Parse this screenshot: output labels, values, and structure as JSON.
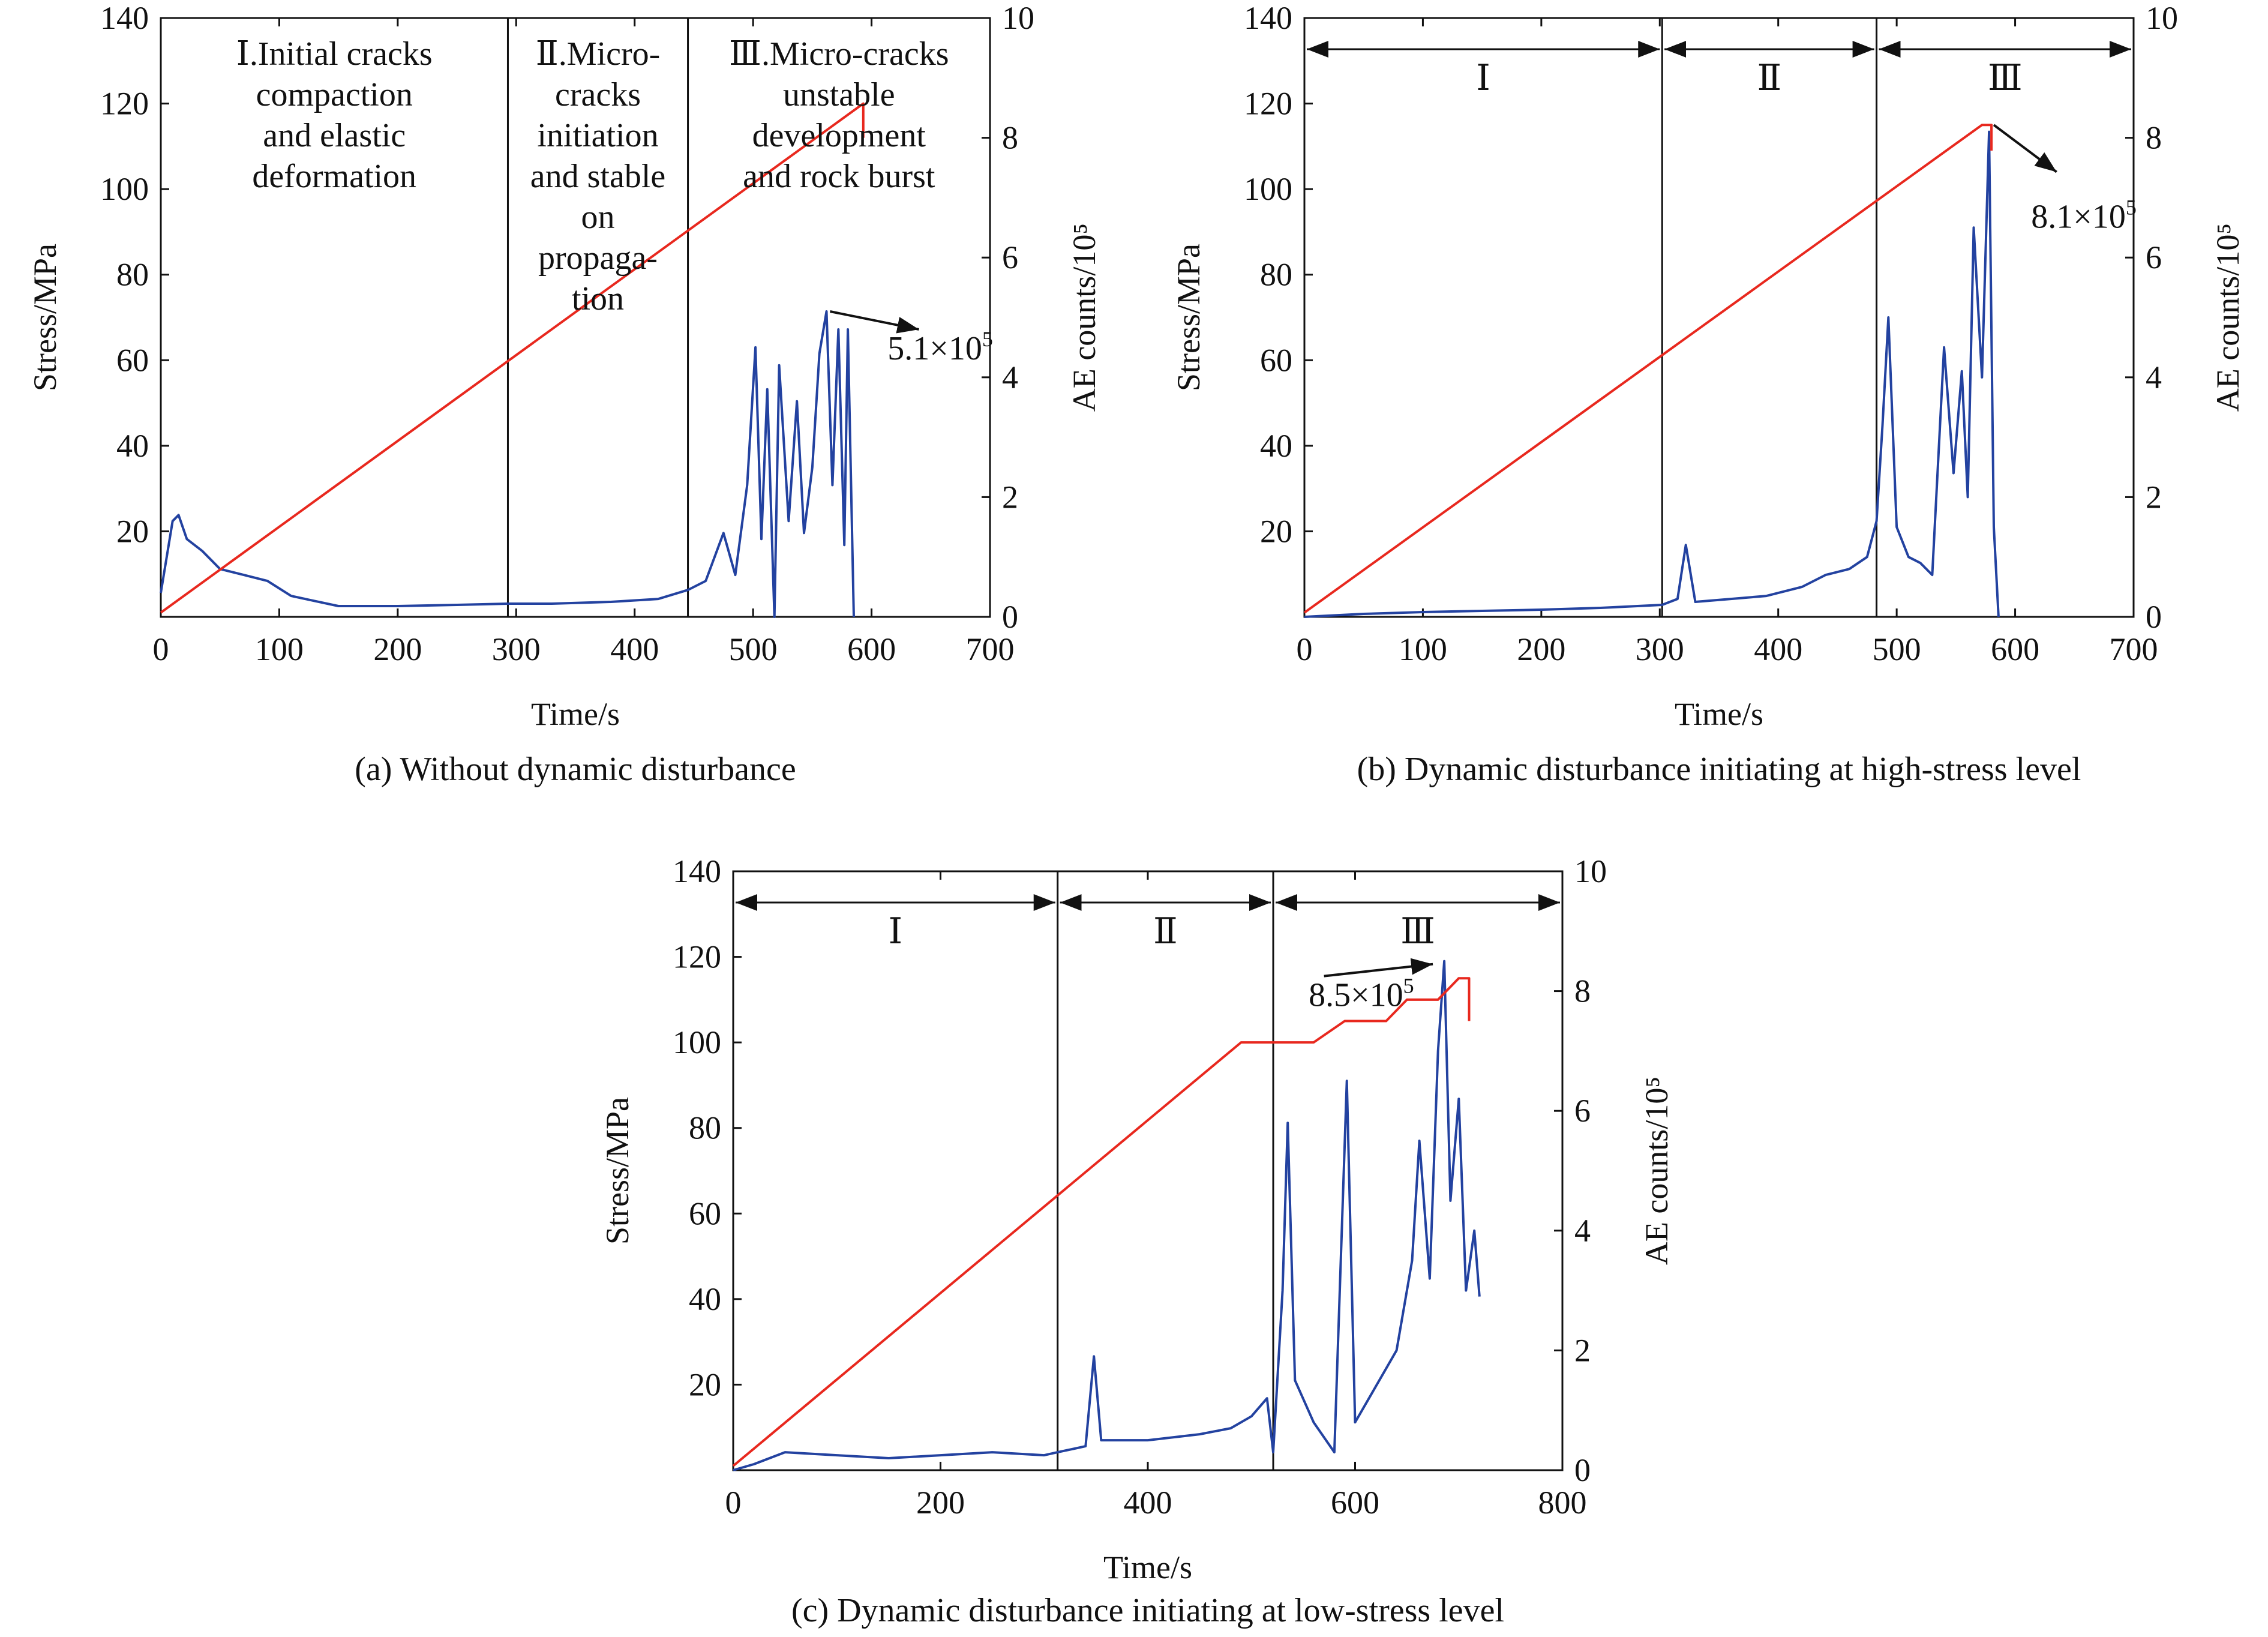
{
  "colors": {
    "stress": "#e8281e",
    "ae": "#2342a0",
    "axis": "#111111",
    "arrow": "#111111"
  },
  "charts": [
    {
      "id": "a",
      "caption": "(a) Without dynamic disturbance",
      "xlabel": "Time/s",
      "ylabel": "Stress/MPa",
      "y2label": "AE counts/10⁵",
      "xticks": [
        "0",
        "100",
        "200",
        "300",
        "400",
        "500",
        "600",
        "700"
      ],
      "yticks": [
        "20",
        "40",
        "60",
        "80",
        "100",
        "120",
        "140"
      ],
      "y2ticks": [
        "0",
        "2",
        "4",
        "6",
        "8",
        "10"
      ],
      "phases": [
        {
          "text": [
            "Ⅰ.Initial cracks",
            "compaction",
            "and elastic",
            "deformation"
          ]
        },
        {
          "text": [
            "Ⅱ.Micro-",
            "cracks",
            "initiation",
            "and stable",
            "on",
            "propaga-",
            "tion"
          ]
        },
        {
          "text": [
            "Ⅲ.Micro-cracks",
            "unstable",
            "development",
            "and rock burst"
          ]
        }
      ],
      "peak_label": "5.1×10",
      "peak_label_exp": "5"
    },
    {
      "id": "b",
      "caption": "(b) Dynamic disturbance initiating at high-stress level",
      "xlabel": "Time/s",
      "ylabel": "Stress/MPa",
      "y2label": "AE counts/10⁵",
      "xticks": [
        "0",
        "100",
        "200",
        "300",
        "400",
        "500",
        "600",
        "700"
      ],
      "yticks": [
        "20",
        "40",
        "60",
        "80",
        "100",
        "120",
        "140"
      ],
      "y2ticks": [
        "0",
        "2",
        "4",
        "6",
        "8",
        "10"
      ],
      "phases": [
        {
          "roman": "Ⅰ"
        },
        {
          "roman": "Ⅱ"
        },
        {
          "roman": "Ⅲ"
        }
      ],
      "peak_label": "8.1×10",
      "peak_label_exp": "5"
    },
    {
      "id": "c",
      "caption": "(c) Dynamic disturbance initiating at low-stress level",
      "xlabel": "Time/s",
      "ylabel": "Stress/MPa",
      "y2label": "AE counts/10⁵",
      "xticks": [
        "0",
        "200",
        "400",
        "600",
        "800"
      ],
      "yticks": [
        "20",
        "40",
        "60",
        "80",
        "100",
        "120",
        "140"
      ],
      "y2ticks": [
        "0",
        "2",
        "4",
        "6",
        "8",
        "10"
      ],
      "phases": [
        {
          "roman": "Ⅰ"
        },
        {
          "roman": "Ⅱ"
        },
        {
          "roman": "Ⅲ"
        }
      ],
      "peak_label": "8.5×10",
      "peak_label_exp": "5"
    }
  ],
  "chart_data": [
    {
      "type": "line",
      "xlim": [
        0,
        700
      ],
      "ylim": [
        0,
        140
      ],
      "y2lim": [
        0,
        10
      ],
      "phase_boundaries": [
        293,
        445
      ],
      "series": [
        {
          "axis": "left",
          "kind": "stress",
          "points": [
            [
              0,
              1
            ],
            [
              593,
              120
            ],
            [
              593,
              112
            ]
          ]
        },
        {
          "axis": "right",
          "kind": "ae",
          "points": [
            [
              0,
              0.4
            ],
            [
              10,
              1.6
            ],
            [
              15,
              1.7
            ],
            [
              22,
              1.3
            ],
            [
              35,
              1.1
            ],
            [
              50,
              0.8
            ],
            [
              70,
              0.7
            ],
            [
              90,
              0.6
            ],
            [
              110,
              0.35
            ],
            [
              150,
              0.18
            ],
            [
              200,
              0.18
            ],
            [
              250,
              0.2
            ],
            [
              293,
              0.22
            ],
            [
              330,
              0.22
            ],
            [
              380,
              0.25
            ],
            [
              420,
              0.3
            ],
            [
              445,
              0.45
            ],
            [
              460,
              0.6
            ],
            [
              475,
              1.4
            ],
            [
              485,
              0.7
            ],
            [
              495,
              2.2
            ],
            [
              502,
              4.5
            ],
            [
              507,
              1.3
            ],
            [
              512,
              3.8
            ],
            [
              518,
              0.0
            ],
            [
              522,
              4.2
            ],
            [
              530,
              1.6
            ],
            [
              537,
              3.6
            ],
            [
              543,
              1.4
            ],
            [
              550,
              2.5
            ],
            [
              556,
              4.4
            ],
            [
              562,
              5.1
            ],
            [
              567,
              2.2
            ],
            [
              572,
              4.8
            ],
            [
              577,
              1.2
            ],
            [
              580,
              4.8
            ],
            [
              585,
              0.0
            ]
          ]
        }
      ]
    },
    {
      "type": "line",
      "xlim": [
        0,
        700
      ],
      "ylim": [
        0,
        140
      ],
      "y2lim": [
        0,
        10
      ],
      "phase_boundaries": [
        302,
        483
      ],
      "series": [
        {
          "axis": "left",
          "kind": "stress",
          "points": [
            [
              0,
              1
            ],
            [
              572,
              115
            ],
            [
              580,
              115
            ],
            [
              580,
              109
            ]
          ]
        },
        {
          "axis": "right",
          "kind": "ae",
          "points": [
            [
              0,
              0.0
            ],
            [
              50,
              0.05
            ],
            [
              100,
              0.08
            ],
            [
              150,
              0.1
            ],
            [
              200,
              0.12
            ],
            [
              250,
              0.15
            ],
            [
              302,
              0.2
            ],
            [
              315,
              0.3
            ],
            [
              322,
              1.2
            ],
            [
              330,
              0.25
            ],
            [
              360,
              0.3
            ],
            [
              390,
              0.35
            ],
            [
              420,
              0.5
            ],
            [
              440,
              0.7
            ],
            [
              460,
              0.8
            ],
            [
              475,
              1.0
            ],
            [
              483,
              1.6
            ],
            [
              488,
              3.2
            ],
            [
              493,
              5.0
            ],
            [
              500,
              1.5
            ],
            [
              510,
              1.0
            ],
            [
              520,
              0.9
            ],
            [
              530,
              0.7
            ],
            [
              540,
              4.5
            ],
            [
              548,
              2.4
            ],
            [
              555,
              4.1
            ],
            [
              560,
              2.0
            ],
            [
              565,
              6.5
            ],
            [
              572,
              4.0
            ],
            [
              578,
              8.1
            ],
            [
              582,
              1.5
            ],
            [
              586,
              0.0
            ]
          ]
        }
      ]
    },
    {
      "type": "line",
      "xlim": [
        0,
        800
      ],
      "ylim": [
        0,
        140
      ],
      "y2lim": [
        0,
        10
      ],
      "phase_boundaries": [
        313,
        521
      ],
      "series": [
        {
          "axis": "left",
          "kind": "stress",
          "points": [
            [
              0,
              1
            ],
            [
              490,
              100
            ],
            [
              560,
              100
            ],
            [
              590,
              105
            ],
            [
              630,
              105
            ],
            [
              650,
              110
            ],
            [
              680,
              110
            ],
            [
              700,
              115
            ],
            [
              710,
              115
            ],
            [
              710,
              105
            ]
          ]
        },
        {
          "axis": "right",
          "kind": "ae",
          "points": [
            [
              0,
              0.0
            ],
            [
              20,
              0.1
            ],
            [
              50,
              0.3
            ],
            [
              100,
              0.25
            ],
            [
              150,
              0.2
            ],
            [
              200,
              0.25
            ],
            [
              250,
              0.3
            ],
            [
              300,
              0.25
            ],
            [
              313,
              0.3
            ],
            [
              340,
              0.4
            ],
            [
              348,
              1.9
            ],
            [
              355,
              0.5
            ],
            [
              400,
              0.5
            ],
            [
              450,
              0.6
            ],
            [
              480,
              0.7
            ],
            [
              500,
              0.9
            ],
            [
              515,
              1.2
            ],
            [
              521,
              0.3
            ],
            [
              530,
              3.0
            ],
            [
              535,
              5.8
            ],
            [
              542,
              1.5
            ],
            [
              560,
              0.8
            ],
            [
              580,
              0.3
            ],
            [
              592,
              6.5
            ],
            [
              600,
              0.8
            ],
            [
              620,
              1.4
            ],
            [
              640,
              2.0
            ],
            [
              655,
              3.5
            ],
            [
              662,
              5.5
            ],
            [
              672,
              3.2
            ],
            [
              680,
              7.0
            ],
            [
              686,
              8.5
            ],
            [
              692,
              4.5
            ],
            [
              700,
              6.2
            ],
            [
              707,
              3.0
            ],
            [
              715,
              4.0
            ],
            [
              720,
              2.9
            ]
          ]
        }
      ]
    }
  ]
}
